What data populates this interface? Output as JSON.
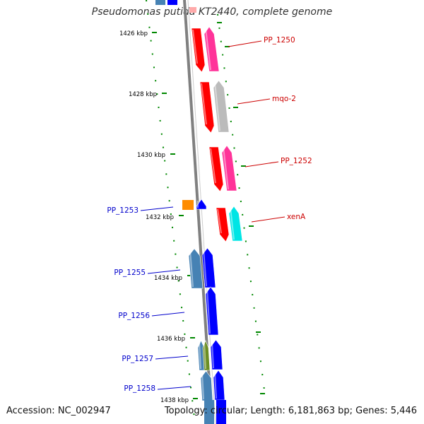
{
  "title": "Pseudomonas putida KT2440, complete genome",
  "accession": "Accession: NC_002947",
  "summary": "Topology: circular; Length: 6,181,863 bp; Genes: 5,446",
  "ruler": [
    {
      "label": "1426 kbp"
    },
    {
      "label": "1428 kbp"
    },
    {
      "label": "1430 kbp"
    },
    {
      "label": "1432 kbp"
    },
    {
      "label": "1434 kbp"
    },
    {
      "label": "1436 kbp"
    },
    {
      "label": "1438 kbp"
    }
  ],
  "gene_labels_forward": [
    "PP_1250",
    "mqo-2",
    "PP_1252",
    "xenA"
  ],
  "gene_labels_reverse": [
    "PP_1253",
    "PP_1255",
    "PP_1256",
    "PP_1257",
    "PP_1258"
  ],
  "colors": {
    "forward_label": "#cc0000",
    "reverse_label": "#0000cc",
    "ruler": "#008800",
    "backbone": "#808080",
    "cds_forward": "#ff0000",
    "cds_forward_alt": "#ff3399",
    "cds_grey": "#bbbbbb",
    "cds_cyan": "#00e5e5",
    "cds_reverse": "#0000ff",
    "cds_steel": "#4682b4",
    "cds_orange": "#ff8c00",
    "cds_olive": "#6b8e23"
  }
}
